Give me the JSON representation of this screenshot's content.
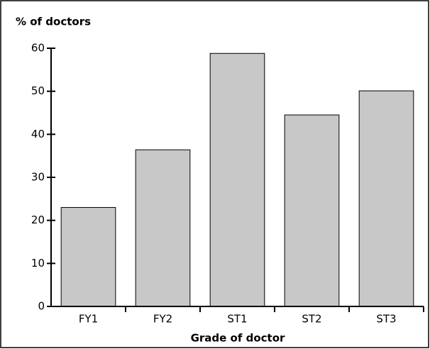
{
  "chart_data": {
    "type": "bar",
    "title": "% of doctors",
    "x_label": "Grade of doctor",
    "categories": [
      "FY1",
      "FY2",
      "ST1",
      "ST2",
      "ST3"
    ],
    "values": [
      23,
      36.4,
      58.8,
      44.5,
      50.1
    ],
    "color": "#c8c8c8",
    "ylim": [
      0,
      60
    ],
    "yticks": [
      0,
      10,
      20,
      30,
      40,
      50,
      60
    ],
    "grid": false
  }
}
